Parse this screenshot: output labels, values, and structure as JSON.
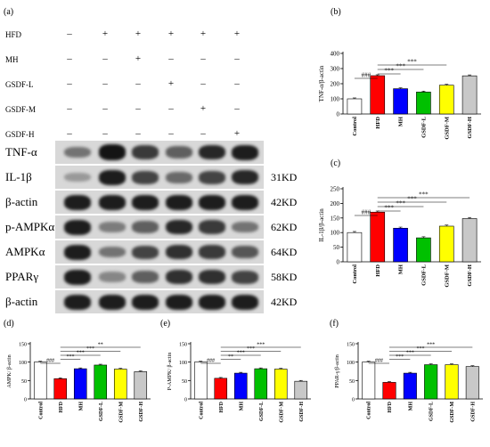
{
  "panel_a": {
    "letter": "(a)",
    "treatment_rows": [
      {
        "label": "HFD",
        "signs": [
          "–",
          "+",
          "+",
          "+",
          "+",
          "+"
        ]
      },
      {
        "label": "MH",
        "signs": [
          "–",
          "–",
          "+",
          "–",
          "–",
          "–"
        ]
      },
      {
        "label": "GSDF-L",
        "signs": [
          "–",
          "–",
          "–",
          "+",
          "–",
          "–"
        ]
      },
      {
        "label": "GSDF-M",
        "signs": [
          "–",
          "–",
          "–",
          "–",
          "+",
          "–"
        ]
      },
      {
        "label": "GSDF-H",
        "signs": [
          "–",
          "–",
          "–",
          "–",
          "–",
          "+"
        ]
      }
    ],
    "blots": [
      {
        "label": "TNF-α",
        "kd": "",
        "intensities": [
          0.45,
          0.95,
          0.75,
          0.55,
          0.85,
          0.9
        ]
      },
      {
        "label": "IL-1β",
        "kd": "31KD",
        "intensities": [
          0.25,
          0.9,
          0.7,
          0.5,
          0.7,
          0.85
        ]
      },
      {
        "label": "β-actin",
        "kd": "42KD",
        "intensities": [
          0.9,
          0.9,
          0.9,
          0.9,
          0.9,
          0.9
        ]
      },
      {
        "label": "p-AMPKα",
        "kd": "62KD",
        "intensities": [
          0.9,
          0.4,
          0.55,
          0.85,
          0.75,
          0.45
        ]
      },
      {
        "label": "AMPKα",
        "kd": "64KD",
        "intensities": [
          0.9,
          0.45,
          0.7,
          0.8,
          0.75,
          0.6
        ]
      },
      {
        "label": "PPARγ",
        "kd": "58KD",
        "intensities": [
          0.9,
          0.35,
          0.55,
          0.8,
          0.8,
          0.7
        ]
      },
      {
        "label": "β-actin",
        "kd": "42KD",
        "intensities": [
          0.9,
          0.9,
          0.9,
          0.9,
          0.9,
          0.9
        ]
      }
    ]
  },
  "chart_data": [
    {
      "panel": "(b)",
      "type": "bar",
      "categories": [
        "Control",
        "HFD",
        "MH",
        "GSDF-L",
        "GSDF-M",
        "GSDF-H"
      ],
      "values": [
        100,
        253,
        167,
        145,
        190,
        252
      ],
      "colors": [
        "#ffffff",
        "#ff0000",
        "#0000ff",
        "#00c000",
        "#ffff00",
        "#c8c8c8"
      ],
      "ylabel": "TNF-α/β-actin",
      "ylim": [
        0,
        400
      ],
      "yticks": [
        0,
        100,
        200,
        300,
        400
      ],
      "annotations": [
        "###",
        "***",
        "***",
        "***"
      ]
    },
    {
      "panel": "(c)",
      "type": "bar",
      "categories": [
        "Control",
        "HFD",
        "MH",
        "GSDF-L",
        "GSDF-M",
        "GSDF-H"
      ],
      "values": [
        100,
        170,
        115,
        82,
        122,
        148
      ],
      "colors": [
        "#ffffff",
        "#ff0000",
        "#0000ff",
        "#00c000",
        "#ffff00",
        "#c8c8c8"
      ],
      "ylabel": "IL-1β/β-actin",
      "ylim": [
        0,
        250
      ],
      "yticks": [
        0,
        50,
        100,
        150,
        200,
        250
      ],
      "annotations": [
        "###",
        "***",
        "***",
        "***",
        "***"
      ]
    },
    {
      "panel": "(d)",
      "type": "bar",
      "categories": [
        "Control",
        "HFD",
        "MH",
        "GSDF-L",
        "GSDF-M",
        "GSDF-H"
      ],
      "values": [
        100,
        55,
        82,
        92,
        81,
        74
      ],
      "colors": [
        "#ffffff",
        "#ff0000",
        "#0000ff",
        "#00c000",
        "#ffff00",
        "#c8c8c8"
      ],
      "ylabel": "AMPK/ β-actin",
      "ylim": [
        0,
        150
      ],
      "yticks": [
        0,
        50,
        100,
        150
      ],
      "annotations": [
        "###",
        "***",
        "***",
        "***",
        "**"
      ]
    },
    {
      "panel": "(e)",
      "type": "bar",
      "categories": [
        "Control",
        "HFD",
        "MH",
        "GSDF-L",
        "GSDF-M",
        "GSDF-H"
      ],
      "values": [
        100,
        56,
        70,
        82,
        81,
        48
      ],
      "colors": [
        "#ffffff",
        "#ff0000",
        "#0000ff",
        "#00c000",
        "#ffff00",
        "#c8c8c8"
      ],
      "ylabel": "P-AMPK/ β-actin",
      "ylim": [
        0,
        150
      ],
      "yticks": [
        0,
        50,
        100,
        150
      ],
      "annotations": [
        "###",
        "**",
        "***",
        "***",
        "***"
      ]
    },
    {
      "panel": "(f)",
      "type": "bar",
      "categories": [
        "Control",
        "HFD",
        "MH",
        "GSDF-L",
        "GSDF-M",
        "GSDF-H"
      ],
      "values": [
        100,
        45,
        70,
        93,
        93,
        88
      ],
      "colors": [
        "#ffffff",
        "#ff0000",
        "#0000ff",
        "#00c000",
        "#ffff00",
        "#c8c8c8"
      ],
      "ylabel": "PPAR-γ/β-actin",
      "ylim": [
        0,
        150
      ],
      "yticks": [
        0,
        50,
        100,
        150
      ],
      "annotations": [
        "###",
        "***",
        "***",
        "***",
        "***"
      ]
    }
  ]
}
